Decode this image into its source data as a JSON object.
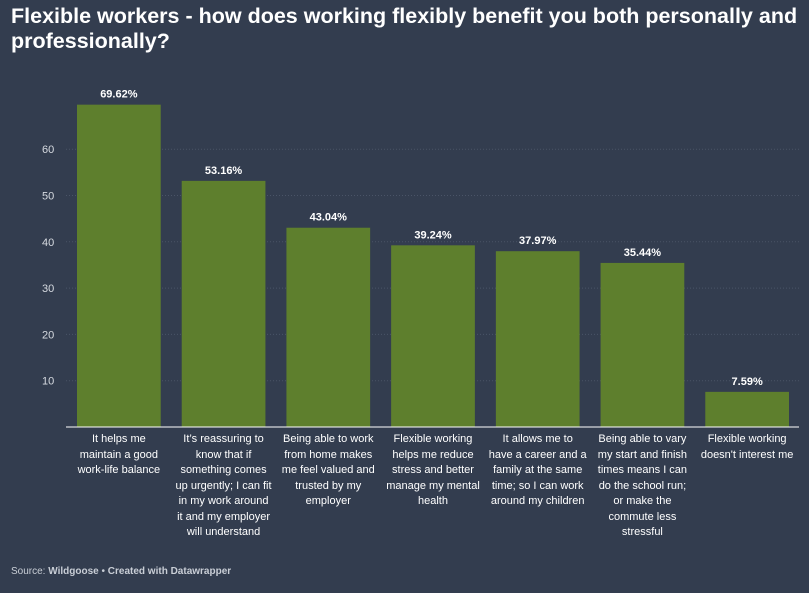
{
  "title": "Flexible workers - how does working flexibly benefit you both personally and professionally?",
  "footer": {
    "source_prefix": "Source:",
    "source_name": "Wildgoose",
    "separator": "•",
    "created_with": "Created with Datawrapper"
  },
  "chart_data": {
    "type": "bar",
    "title": "Flexible workers - how does working flexibly benefit you both personally and professionally?",
    "xlabel": "",
    "ylabel": "",
    "categories": [
      "It helps me maintain a good work-life balance",
      "It’s reassuring to know that if something comes up urgently; I can fit in my work around it and my employer will understand",
      "Being able to work from home makes me feel valued and trusted by my employer",
      "Flexible working helps me reduce stress and better manage my mental health",
      "It allows me to have a career and a family at the same time; so I can work around my children",
      "Being able to vary my start and finish times means I can do the school run; or make the commute less stressful",
      "Flexible working doesn't interest me"
    ],
    "category_lines": [
      [
        "It helps me",
        "maintain a good",
        "work-life balance"
      ],
      [
        "It’s reassuring to",
        "know that if",
        "something comes",
        "up urgently; I can fit",
        "in my work around",
        "it and my employer",
        "will understand"
      ],
      [
        "Being able to work",
        "from home makes",
        "me feel valued and",
        "trusted by my",
        "employer"
      ],
      [
        "Flexible working",
        "helps me reduce",
        "stress and better",
        "manage my mental",
        "health"
      ],
      [
        "It allows me to",
        "have a career and a",
        "family at the same",
        "time; so I can work",
        "around my children"
      ],
      [
        "Being able to vary",
        "my start and finish",
        "times means I can",
        "do the school run;",
        "or make the",
        "commute less",
        "stressful"
      ],
      [
        "Flexible working",
        "doesn't interest me"
      ]
    ],
    "values": [
      69.62,
      53.16,
      43.04,
      39.24,
      37.97,
      35.44,
      7.59
    ],
    "value_labels": [
      "69.62%",
      "53.16%",
      "43.04%",
      "39.24%",
      "37.97%",
      "35.44%",
      "7.59%"
    ],
    "yticks": [
      10,
      20,
      30,
      40,
      50,
      60
    ],
    "ylim": [
      0,
      70
    ],
    "grid": true,
    "colors": {
      "bar": "#5e7f2d",
      "background": "#333d4f",
      "grid": "#4a5467",
      "axis": "#ffffff"
    }
  }
}
